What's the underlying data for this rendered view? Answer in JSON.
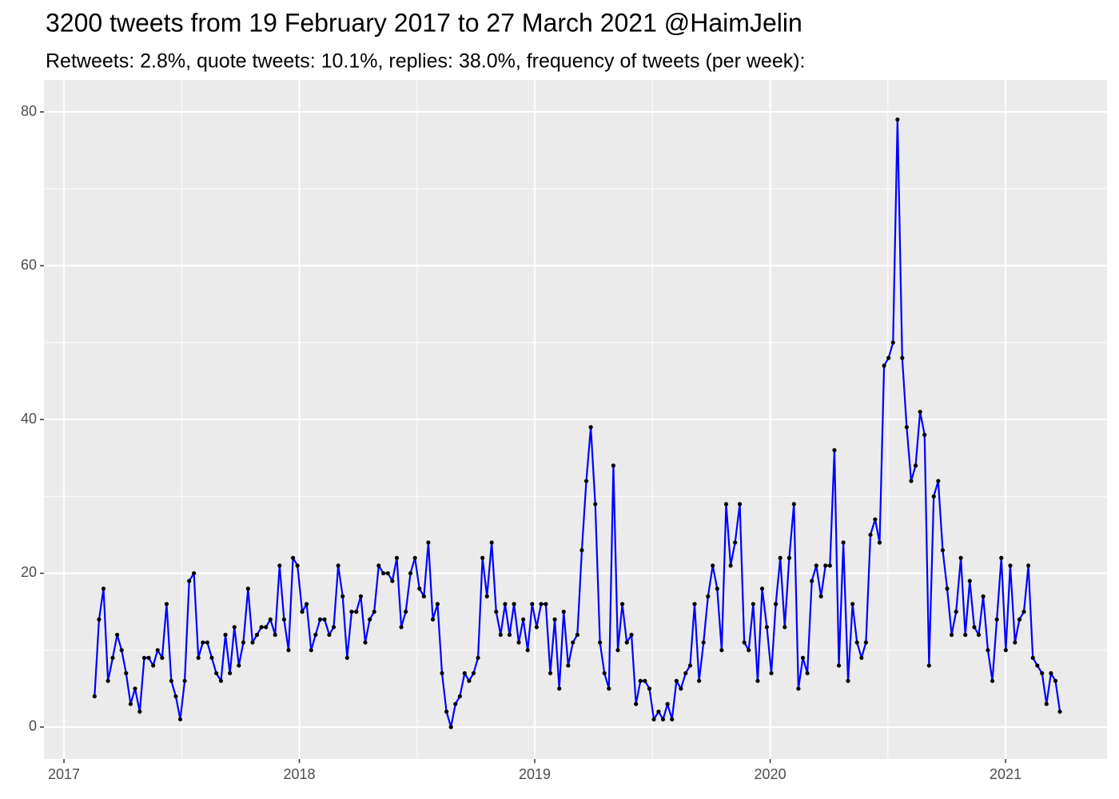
{
  "chart_data": {
    "type": "line",
    "title": "3200 tweets from 19 February 2017 to 27 March 2021 @HaimJelin",
    "subtitle": "Retweets: 2.8%, quote tweets: 10.1%, replies: 38.0%, frequency of tweets (per week):",
    "x": [
      2017.13,
      2017.149,
      2017.168,
      2017.187,
      2017.207,
      2017.226,
      2017.245,
      2017.264,
      2017.283,
      2017.302,
      2017.322,
      2017.341,
      2017.36,
      2017.379,
      2017.398,
      2017.417,
      2017.436,
      2017.456,
      2017.475,
      2017.494,
      2017.513,
      2017.532,
      2017.552,
      2017.571,
      2017.59,
      2017.609,
      2017.628,
      2017.647,
      2017.667,
      2017.686,
      2017.705,
      2017.724,
      2017.743,
      2017.762,
      2017.782,
      2017.801,
      2017.82,
      2017.839,
      2017.858,
      2017.877,
      2017.897,
      2017.916,
      2017.935,
      2017.954,
      2017.973,
      2017.992,
      2018.012,
      2018.031,
      2018.05,
      2018.069,
      2018.088,
      2018.107,
      2018.127,
      2018.146,
      2018.165,
      2018.184,
      2018.203,
      2018.222,
      2018.242,
      2018.261,
      2018.28,
      2018.299,
      2018.318,
      2018.337,
      2018.357,
      2018.376,
      2018.395,
      2018.414,
      2018.433,
      2018.452,
      2018.472,
      2018.491,
      2018.51,
      2018.529,
      2018.548,
      2018.567,
      2018.587,
      2018.606,
      2018.625,
      2018.644,
      2018.663,
      2018.682,
      2018.702,
      2018.721,
      2018.74,
      2018.759,
      2018.778,
      2018.797,
      2018.817,
      2018.836,
      2018.855,
      2018.874,
      2018.893,
      2018.912,
      2018.932,
      2018.951,
      2018.97,
      2018.989,
      2019.008,
      2019.027,
      2019.047,
      2019.066,
      2019.085,
      2019.104,
      2019.123,
      2019.142,
      2019.162,
      2019.181,
      2019.2,
      2019.219,
      2019.238,
      2019.257,
      2019.277,
      2019.296,
      2019.315,
      2019.334,
      2019.353,
      2019.372,
      2019.391,
      2019.411,
      2019.43,
      2019.449,
      2019.468,
      2019.487,
      2019.506,
      2019.526,
      2019.545,
      2019.564,
      2019.583,
      2019.602,
      2019.621,
      2019.641,
      2019.66,
      2019.679,
      2019.698,
      2019.717,
      2019.736,
      2019.756,
      2019.775,
      2019.794,
      2019.813,
      2019.832,
      2019.851,
      2019.871,
      2019.89,
      2019.909,
      2019.928,
      2019.947,
      2019.966,
      2019.986,
      2020.005,
      2020.024,
      2020.043,
      2020.062,
      2020.081,
      2020.101,
      2020.12,
      2020.139,
      2020.158,
      2020.177,
      2020.196,
      2020.216,
      2020.235,
      2020.254,
      2020.273,
      2020.292,
      2020.311,
      2020.331,
      2020.35,
      2020.369,
      2020.388,
      2020.407,
      2020.426,
      2020.446,
      2020.465,
      2020.484,
      2020.503,
      2020.522,
      2020.541,
      2020.561,
      2020.58,
      2020.599,
      2020.618,
      2020.637,
      2020.656,
      2020.675,
      2020.695,
      2020.714,
      2020.733,
      2020.752,
      2020.771,
      2020.79,
      2020.81,
      2020.829,
      2020.848,
      2020.867,
      2020.886,
      2020.905,
      2020.925,
      2020.944,
      2020.963,
      2020.982,
      2021.001,
      2021.02,
      2021.04,
      2021.059,
      2021.078,
      2021.097,
      2021.116,
      2021.135,
      2021.155,
      2021.174,
      2021.193,
      2021.212,
      2021.231
    ],
    "series": [
      {
        "color": "#0000ff",
        "point_color": "#000000",
        "values": [
          4,
          14,
          18,
          6,
          9,
          12,
          10,
          7,
          3,
          5,
          2,
          9,
          9,
          8,
          10,
          9,
          16,
          6,
          4,
          1,
          6,
          19,
          20,
          9,
          11,
          11,
          9,
          7,
          6,
          12,
          7,
          13,
          8,
          11,
          18,
          11,
          12,
          13,
          13,
          14,
          12,
          21,
          14,
          10,
          22,
          21,
          15,
          16,
          10,
          12,
          14,
          14,
          12,
          13,
          21,
          17,
          9,
          15,
          15,
          17,
          11,
          14,
          15,
          21,
          20,
          20,
          19,
          22,
          13,
          15,
          20,
          22,
          18,
          17,
          24,
          14,
          16,
          7,
          2,
          0,
          3,
          4,
          7,
          6,
          7,
          9,
          22,
          17,
          24,
          15,
          12,
          16,
          12,
          16,
          11,
          14,
          10,
          16,
          13,
          16,
          16,
          7,
          14,
          5,
          15,
          8,
          11,
          12,
          23,
          32,
          39,
          29,
          11,
          7,
          5,
          34,
          10,
          16,
          11,
          12,
          3,
          6,
          6,
          5,
          1,
          2,
          1,
          3,
          1,
          6,
          5,
          7,
          8,
          16,
          6,
          11,
          17,
          21,
          18,
          10,
          29,
          21,
          24,
          29,
          11,
          10,
          16,
          6,
          18,
          13,
          7,
          16,
          22,
          13,
          22,
          29,
          5,
          9,
          7,
          19,
          21,
          17,
          21,
          21,
          36,
          8,
          24,
          6,
          16,
          11,
          9,
          11,
          25,
          27,
          24,
          47,
          48,
          50,
          79,
          48,
          39,
          32,
          34,
          41,
          38,
          8,
          30,
          32,
          23,
          18,
          12,
          15,
          22,
          12,
          19,
          13,
          12,
          17,
          10,
          6,
          14,
          22,
          10,
          21,
          11,
          14,
          15,
          21,
          9,
          8,
          7,
          3,
          7,
          6,
          2
        ]
      }
    ],
    "xlim": [
      2016.915,
      2021.431
    ],
    "xticks": [
      2017,
      2018,
      2019,
      2020,
      2021
    ],
    "ylim": [
      -4.16,
      84.16
    ],
    "yticks": [
      0,
      20,
      40,
      60,
      80
    ],
    "grid": true,
    "panel_color": "#ebebeb"
  }
}
